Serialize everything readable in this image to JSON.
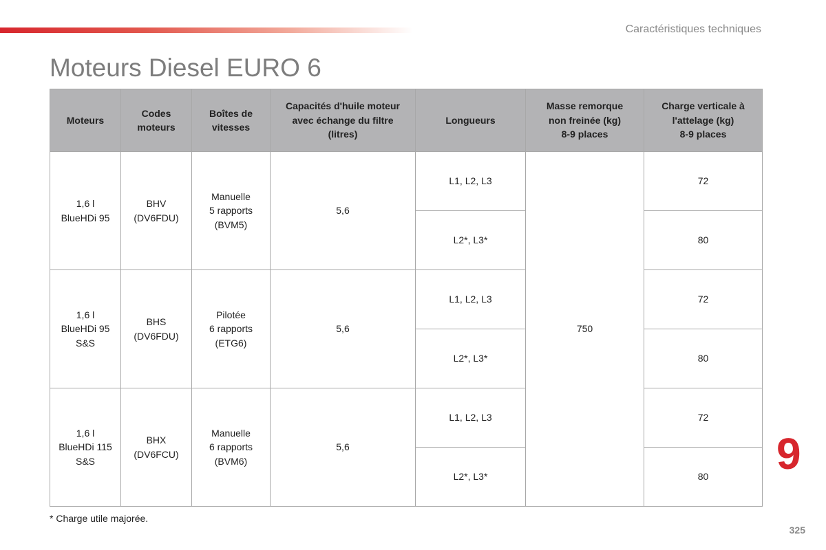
{
  "header": {
    "section_title": "Caractéristiques techniques",
    "page_heading": "Moteurs Diesel EURO 6"
  },
  "table": {
    "columns": [
      "Moteurs",
      "Codes\nmoteurs",
      "Boîtes de\nvitesses",
      "Capacités d'huile moteur\navec échange du filtre\n(litres)",
      "Longueurs",
      "Masse remorque\nnon freinée (kg)\n8-9 places",
      "Charge verticale à\nl'attelage (kg)\n8-9 places"
    ],
    "groups": [
      {
        "engine": "1,6 l\nBlueHDi 95",
        "code": "BHV\n(DV6FDU)",
        "gearbox": "Manuelle\n5 rapports\n(BVM5)",
        "oil": "5,6",
        "rows": [
          {
            "length": "L1, L2, L3",
            "vertical_load": "72"
          },
          {
            "length": "L2*, L3*",
            "vertical_load": "80"
          }
        ]
      },
      {
        "engine": "1,6 l\nBlueHDi 95\nS&S",
        "code": "BHS\n(DV6FDU)",
        "gearbox": "Pilotée\n6 rapports\n(ETG6)",
        "oil": "5,6",
        "rows": [
          {
            "length": "L1, L2, L3",
            "vertical_load": "72"
          },
          {
            "length": "L2*, L3*",
            "vertical_load": "80"
          }
        ]
      },
      {
        "engine": "1,6 l\nBlueHDi 115\nS&S",
        "code": "BHX\n(DV6FCU)",
        "gearbox": "Manuelle\n6 rapports\n(BVM6)",
        "oil": "5,6",
        "rows": [
          {
            "length": "L1, L2, L3",
            "vertical_load": "72"
          },
          {
            "length": "L2*, L3*",
            "vertical_load": "80"
          }
        ]
      }
    ],
    "trailer_mass": "750"
  },
  "footnote": "* Charge utile majorée.",
  "chapter_number": "9",
  "page_number": "325",
  "colors": {
    "accent": "#d7262d",
    "header_bg": "#b3b3b5",
    "muted_text": "#8a8a8a"
  }
}
